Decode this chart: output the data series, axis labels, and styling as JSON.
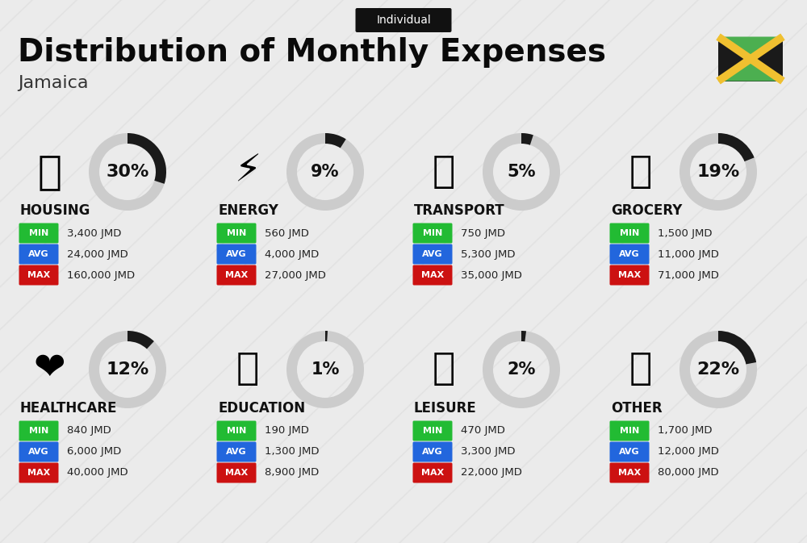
{
  "title": "Distribution of Monthly Expenses",
  "subtitle": "Individual",
  "country": "Jamaica",
  "bg_color": "#ebebeb",
  "categories": [
    {
      "name": "HOUSING",
      "pct": 30,
      "min_val": "3,400 JMD",
      "avg_val": "24,000 JMD",
      "max_val": "160,000 JMD",
      "row": 0,
      "col": 0
    },
    {
      "name": "ENERGY",
      "pct": 9,
      "min_val": "560 JMD",
      "avg_val": "4,000 JMD",
      "max_val": "27,000 JMD",
      "row": 0,
      "col": 1
    },
    {
      "name": "TRANSPORT",
      "pct": 5,
      "min_val": "750 JMD",
      "avg_val": "5,300 JMD",
      "max_val": "35,000 JMD",
      "row": 0,
      "col": 2
    },
    {
      "name": "GROCERY",
      "pct": 19,
      "min_val": "1,500 JMD",
      "avg_val": "11,000 JMD",
      "max_val": "71,000 JMD",
      "row": 0,
      "col": 3
    },
    {
      "name": "HEALTHCARE",
      "pct": 12,
      "min_val": "840 JMD",
      "avg_val": "6,000 JMD",
      "max_val": "40,000 JMD",
      "row": 1,
      "col": 0
    },
    {
      "name": "EDUCATION",
      "pct": 1,
      "min_val": "190 JMD",
      "avg_val": "1,300 JMD",
      "max_val": "8,900 JMD",
      "row": 1,
      "col": 1
    },
    {
      "name": "LEISURE",
      "pct": 2,
      "min_val": "470 JMD",
      "avg_val": "3,300 JMD",
      "max_val": "22,000 JMD",
      "row": 1,
      "col": 2
    },
    {
      "name": "OTHER",
      "pct": 22,
      "min_val": "1,700 JMD",
      "avg_val": "12,000 JMD",
      "max_val": "80,000 JMD",
      "row": 1,
      "col": 3
    }
  ],
  "min_color": "#22bb33",
  "avg_color": "#2266dd",
  "max_color": "#cc1111",
  "label_text_color": "#ffffff",
  "value_text_color": "#222222",
  "category_name_color": "#111111",
  "donut_dark_color": "#1a1a1a",
  "donut_light_color": "#cccccc",
  "stripe_color": "#dddddd",
  "badge_color": "#111111",
  "flag_green": "#4caf50",
  "flag_black": "#1a1a1a",
  "flag_gold": "#f0c030"
}
